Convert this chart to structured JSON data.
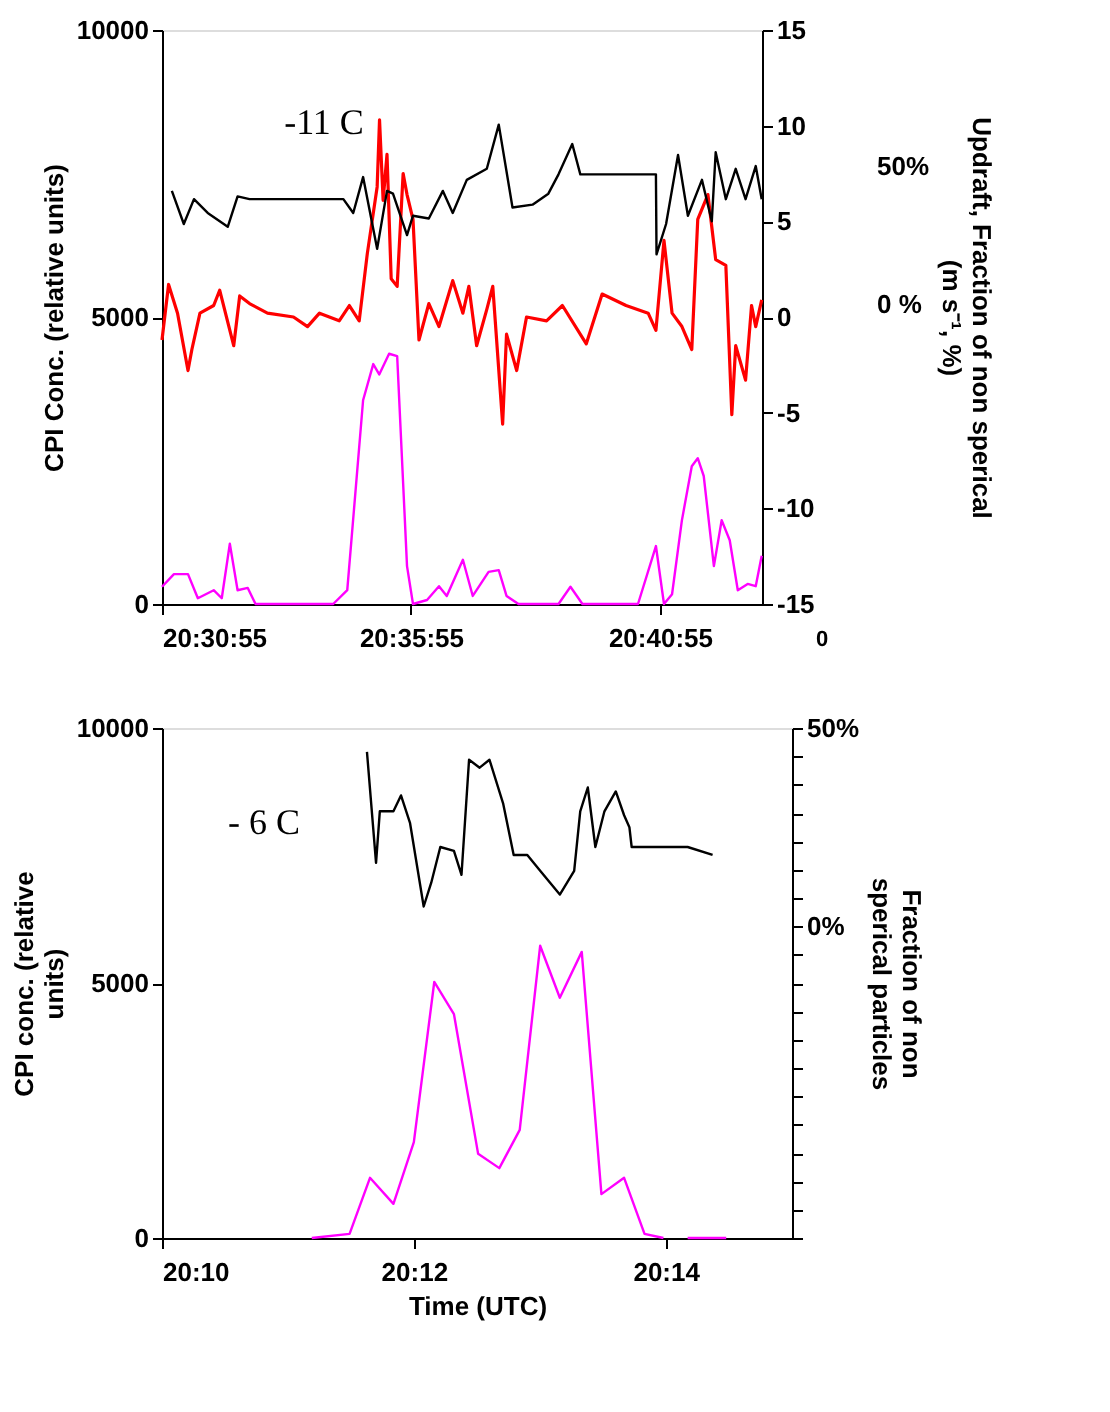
{
  "chart_data": [
    {
      "type": "line",
      "ylabel": "CPI Conc. (relative units)",
      "y2label": "Updraft, Fraction of non sperical\n(m s⁻¹, %)",
      "annotations": [
        "-11 C",
        "0"
      ],
      "xlim": [
        20.5153,
        20.7161
      ],
      "xticks": [
        {
          "value": 20.5153,
          "label": "20:30:55"
        },
        {
          "value": 20.59861,
          "label": "20:35:55"
        },
        {
          "value": 20.68194,
          "label": "20:40:55"
        }
      ],
      "ylim": [
        0,
        10000
      ],
      "yticks": [
        0,
        5000,
        10000
      ],
      "y2lim": [
        -15,
        15
      ],
      "y2ticks": [
        -15,
        -10,
        -5,
        0,
        5,
        10,
        15
      ],
      "y3lim": [
        -108.7,
        99.3
      ],
      "y3ticks": [
        {
          "value": 0,
          "label": "0 %"
        },
        {
          "value": 50,
          "label": "50%"
        }
      ],
      "grid": false,
      "line_style": "solid",
      "marker": "none",
      "series": [
        {
          "color": "#ff00ff",
          "x": [
            20.5153,
            20.5193,
            20.524,
            20.5273,
            20.5326,
            20.5353,
            20.538,
            20.5406,
            20.544,
            20.5466,
            20.5726,
            20.5773,
            20.5826,
            20.586,
            20.588,
            20.5913,
            20.594,
            20.5973,
            20.5993,
            20.604,
            20.608,
            20.6106,
            20.616,
            20.6193,
            20.6246,
            20.628,
            20.6306,
            20.6346,
            20.648,
            20.652,
            20.656,
            20.6746,
            20.6806,
            20.6833,
            20.686,
            20.6893,
            20.6926,
            20.6946,
            20.6966,
            20.7,
            20.7026,
            20.7053,
            20.708,
            20.7113,
            20.714,
            20.716
          ],
          "values": [
            300,
            520,
            520,
            100,
            240,
            100,
            1050,
            240,
            280,
            0,
            0,
            240,
            3550,
            4180,
            4000,
            4360,
            4320,
            660,
            0,
            70,
            310,
            140,
            770,
            140,
            560,
            590,
            140,
            0,
            0,
            300,
            0,
            0,
            1010,
            0,
            170,
            1460,
            2400,
            2540,
            2230,
            660,
            1460,
            1110,
            240,
            350,
            310,
            840
          ]
        },
        {
          "color": "#ff0000",
          "axis": "y2",
          "x": [
            20.5153,
            20.5175,
            20.5205,
            20.524,
            20.5253,
            20.528,
            20.5326,
            20.5346,
            20.5393,
            20.5413,
            20.5446,
            20.5506,
            20.5593,
            20.564,
            20.568,
            20.5746,
            20.578,
            20.5813,
            20.584,
            20.5873,
            20.5881,
            20.5893,
            20.5906,
            20.592,
            20.594,
            20.596,
            20.5973,
            20.5993,
            20.6013,
            20.6046,
            20.608,
            20.6126,
            20.616,
            20.618,
            20.6206,
            20.624,
            20.626,
            20.6293,
            20.6306,
            20.634,
            20.6373,
            20.644,
            20.6493,
            20.6573,
            20.6626,
            20.6706,
            20.678,
            20.6806,
            20.6833,
            20.686,
            20.6893,
            20.6926,
            20.6946,
            20.698,
            20.7006,
            20.704,
            20.706,
            20.7073,
            20.7106,
            20.7126,
            20.714,
            20.716
          ],
          "values": [
            -1.2,
            1.7,
            0.2,
            -2.8,
            -1.7,
            0.2,
            0.6,
            1.4,
            -1.5,
            1.1,
            0.7,
            0.2,
            0.0,
            -0.5,
            0.2,
            -0.2,
            0.6,
            -0.2,
            3.3,
            6.8,
            10.3,
            6.1,
            8.5,
            2.0,
            1.6,
            7.5,
            6.4,
            5.1,
            -1.2,
            0.7,
            -0.5,
            1.9,
            0.2,
            1.6,
            -1.5,
            0.4,
            1.6,
            -5.6,
            -0.9,
            -2.8,
            0.0,
            -0.2,
            0.6,
            -1.4,
            1.2,
            0.6,
            0.2,
            -0.7,
            4.0,
            0.2,
            -0.5,
            -1.7,
            5.1,
            6.4,
            3.0,
            2.7,
            -5.1,
            -1.5,
            -3.3,
            0.6,
            -0.5,
            0.9
          ]
        },
        {
          "color": "#000000",
          "axis": "y3",
          "x": [
            20.5186,
            20.5226,
            20.526,
            20.5306,
            20.5373,
            20.5406,
            20.5446,
            20.576,
            20.5793,
            20.5826,
            20.5873,
            20.5906,
            20.5926,
            20.5973,
            20.5993,
            20.6046,
            20.6093,
            20.6126,
            20.6173,
            20.624,
            20.628,
            20.6326,
            20.6393,
            20.6446,
            20.648,
            20.6526,
            20.6553,
            20.6606,
            20.6806,
            20.6808,
            20.684,
            20.688,
            20.6913,
            20.696,
            20.6993,
            20.7006,
            20.704,
            20.7073,
            20.7106,
            20.714,
            20.716
          ],
          "values": [
            41,
            29,
            38,
            33,
            28,
            39,
            38,
            38,
            33,
            46,
            20,
            41,
            40,
            25,
            32,
            31,
            41,
            33,
            45,
            49,
            65,
            35,
            36,
            40,
            47,
            58,
            47,
            47,
            47,
            18,
            29,
            54,
            32,
            45,
            30,
            55,
            38,
            49,
            38,
            50,
            38
          ]
        }
      ]
    },
    {
      "type": "line",
      "xlabel": "Time (UTC)",
      "ylabel": "CPI conc. (relative\nunits)",
      "y2label": "Fraction of non\nsperical particles",
      "annotations": [
        "- 6 C"
      ],
      "xlim": [
        20.1667,
        20.25
      ],
      "xticks": [
        {
          "value": 20.1667,
          "label": "20:10"
        },
        {
          "value": 20.2,
          "label": "20:12"
        },
        {
          "value": 20.2333,
          "label": "20:14"
        }
      ],
      "ylim": [
        0,
        10000
      ],
      "yticks": [
        0,
        5000,
        10000
      ],
      "y2lim": [
        -78.571,
        50
      ],
      "y2ticks": [
        {
          "value": 50,
          "label": "50%"
        },
        {
          "value": 42.857,
          "label": null
        },
        {
          "value": 35.714,
          "label": null
        },
        {
          "value": 28.571,
          "label": null
        },
        {
          "value": 21.429,
          "label": null
        },
        {
          "value": 14.286,
          "label": null
        },
        {
          "value": 7.143,
          "label": null
        },
        {
          "value": 0,
          "label": "0%"
        },
        {
          "value": -7.143,
          "label": null
        },
        {
          "value": -14.286,
          "label": null
        },
        {
          "value": -21.429,
          "label": null
        },
        {
          "value": -28.571,
          "label": null
        },
        {
          "value": -35.714,
          "label": null
        },
        {
          "value": -42.857,
          "label": null
        },
        {
          "value": -50,
          "label": null
        },
        {
          "value": -57.143,
          "label": null
        },
        {
          "value": -64.286,
          "label": null
        },
        {
          "value": -71.429,
          "label": null
        },
        {
          "value": -78.571,
          "label": null
        }
      ],
      "grid": false,
      "line_style": "solid",
      "marker": "none",
      "series": [
        {
          "color": "#ff00ff",
          "x": [
            20.1865,
            20.1915,
            20.1942,
            20.1973,
            20.2,
            20.2027,
            20.2053,
            20.2085,
            20.2113,
            20.214,
            20.2167,
            20.2193,
            20.2222,
            20.2248,
            20.2278,
            20.2305,
            20.233,
            20.2347,
            20.2362,
            20.2413
          ],
          "values": [
            0,
            80,
            1180,
            670,
            1880,
            5020,
            4390,
            1650,
            1370,
            2120,
            5730,
            4710,
            5610,
            860,
            1180,
            80,
            0,
            null,
            0,
            0
          ]
        },
        {
          "color": "#000000",
          "axis": "y2",
          "x": [
            20.1938,
            20.195,
            20.1955,
            20.1973,
            20.1983,
            20.1995,
            20.2013,
            20.2023,
            20.2035,
            20.2053,
            20.2063,
            20.2073,
            20.2087,
            20.21,
            20.2118,
            20.2132,
            20.215,
            20.2167,
            20.2193,
            20.2212,
            20.222,
            20.223,
            20.224,
            20.2252,
            20.2267,
            20.2278,
            20.2285,
            20.2288,
            20.2325,
            20.2362,
            20.2395
          ],
          "values": [
            44,
            16,
            29,
            29,
            33,
            26,
            5,
            11,
            20,
            19,
            13,
            42,
            40,
            42,
            31,
            18,
            18,
            14,
            8,
            14,
            29,
            35,
            20,
            29,
            34,
            28,
            25,
            20,
            20,
            20,
            18
          ]
        }
      ]
    }
  ]
}
